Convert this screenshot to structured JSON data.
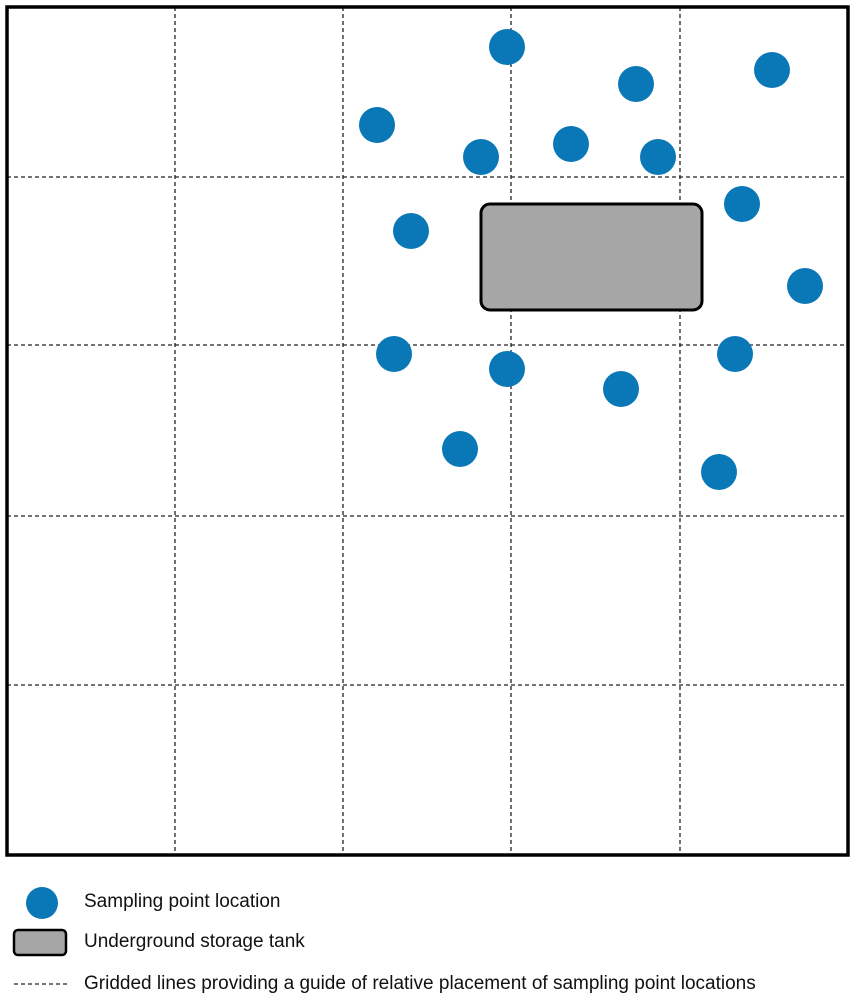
{
  "legend": {
    "items": [
      {
        "label": "Sampling point location"
      },
      {
        "label": "Underground storage tank"
      },
      {
        "label": "Gridded lines providing a guide of relative placement of sampling point locations"
      }
    ]
  }
}
